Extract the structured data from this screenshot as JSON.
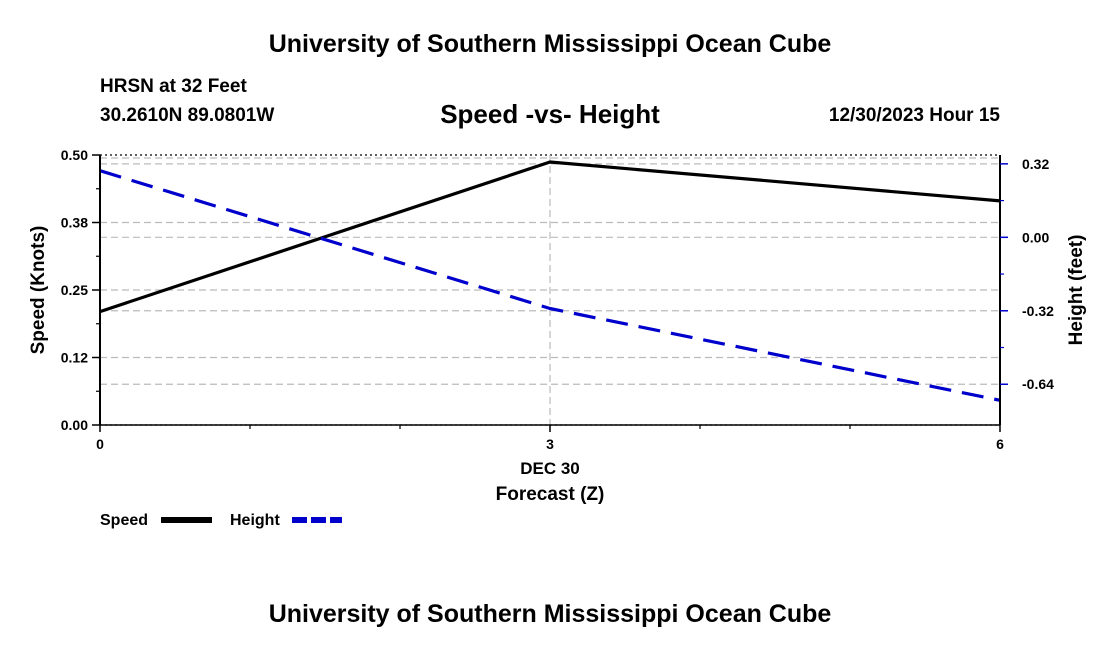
{
  "header": {
    "title": "University of Southern Mississippi Ocean Cube",
    "station": "HRSN at 32 Feet",
    "coordinates": "30.2610N  89.0801W",
    "chart_title": "Speed -vs- Height",
    "datestamp": "12/30/2023 Hour 15"
  },
  "footer": {
    "title": "University of Southern Mississippi Ocean Cube"
  },
  "chart_data": {
    "type": "line",
    "title": "Speed -vs- Height",
    "xlabel": "Forecast (Z)",
    "xsublabel": "DEC 30",
    "ylabel": "Speed (Knots)",
    "y2label": "Height (feet)",
    "x": [
      0,
      3,
      6
    ],
    "xticks": [
      0,
      3,
      6
    ],
    "xtick_labels": [
      "0",
      "3",
      "6"
    ],
    "xlim": [
      0,
      6
    ],
    "ylim": [
      0,
      0.5
    ],
    "yticks": [
      0.0,
      0.125,
      0.25,
      0.375,
      0.5
    ],
    "ytick_labels": [
      "0.00",
      "0.12",
      "0.25",
      "0.38",
      "0.50"
    ],
    "y2lim": [
      -0.8175,
      0.3585
    ],
    "y2ticks": [
      -0.64,
      -0.32,
      0.0,
      0.32
    ],
    "y2tick_labels": [
      "-0.64",
      "-0.32",
      "0.00",
      "0.32"
    ],
    "grid": true,
    "series": [
      {
        "name": "Speed",
        "axis": "left",
        "color": "#000000",
        "dash": "solid",
        "values": [
          0.21,
          0.487,
          0.415
        ]
      },
      {
        "name": "Height",
        "axis": "right",
        "color": "#0000cc",
        "dash": "dashed",
        "values": [
          0.29,
          -0.31,
          -0.71
        ]
      }
    ],
    "legend": {
      "position": "bottom-left",
      "items": [
        "Speed",
        "Height"
      ]
    }
  }
}
